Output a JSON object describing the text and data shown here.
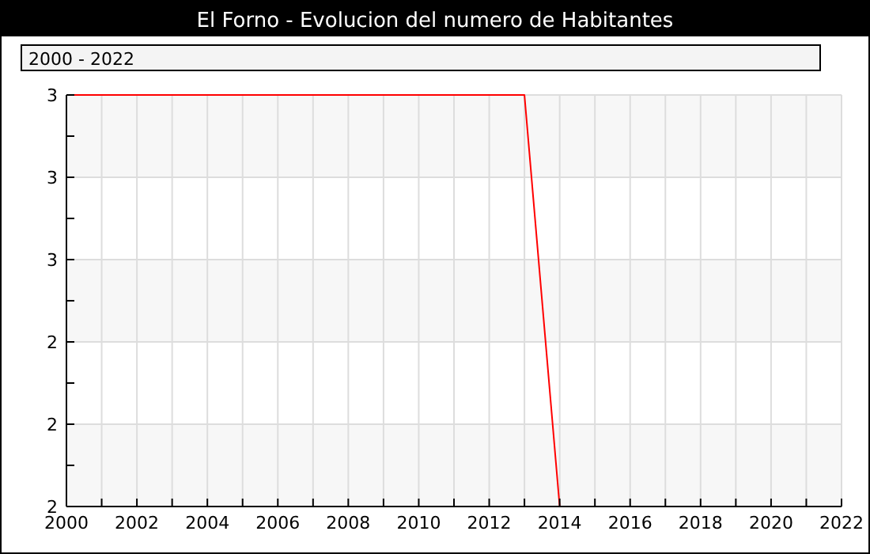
{
  "chart_data": {
    "type": "line",
    "title": "El Forno - Evolucion del numero de Habitantes",
    "annotations": [
      "2000 - 2022"
    ],
    "x": [
      2000,
      2013,
      2014
    ],
    "series": [
      {
        "color": "#ff0000",
        "values": [
          3,
          3,
          2
        ]
      }
    ],
    "xlim": [
      2000,
      2022
    ],
    "xticks": [
      2000,
      {
        "value": 2001,
        "label": null
      },
      2002,
      {
        "value": 2003,
        "label": null
      },
      2004,
      {
        "value": 2005,
        "label": null
      },
      2006,
      {
        "value": 2007,
        "label": null
      },
      2008,
      {
        "value": 2009,
        "label": null
      },
      2010,
      {
        "value": 2011,
        "label": null
      },
      2012,
      {
        "value": 2013,
        "label": null
      },
      2014,
      {
        "value": 2015,
        "label": null
      },
      2016,
      {
        "value": 2017,
        "label": null
      },
      2018,
      {
        "value": 2019,
        "label": null
      },
      2020,
      {
        "value": 2021,
        "label": null
      },
      2022
    ],
    "ylim": [
      2,
      3
    ],
    "yticks": [
      2,
      {
        "value": 2.1,
        "label": null
      },
      {
        "value": 2.2,
        "label": "2"
      },
      {
        "value": 2.3,
        "label": null
      },
      {
        "value": 2.4,
        "label": "2"
      },
      {
        "value": 2.5,
        "label": null
      },
      {
        "value": 2.6,
        "label": "3"
      },
      {
        "value": 2.7,
        "label": null
      },
      {
        "value": 2.8,
        "label": "3"
      },
      {
        "value": 2.9,
        "label": null
      },
      3
    ],
    "grid": true,
    "marker": "none",
    "line_style": "solid"
  }
}
